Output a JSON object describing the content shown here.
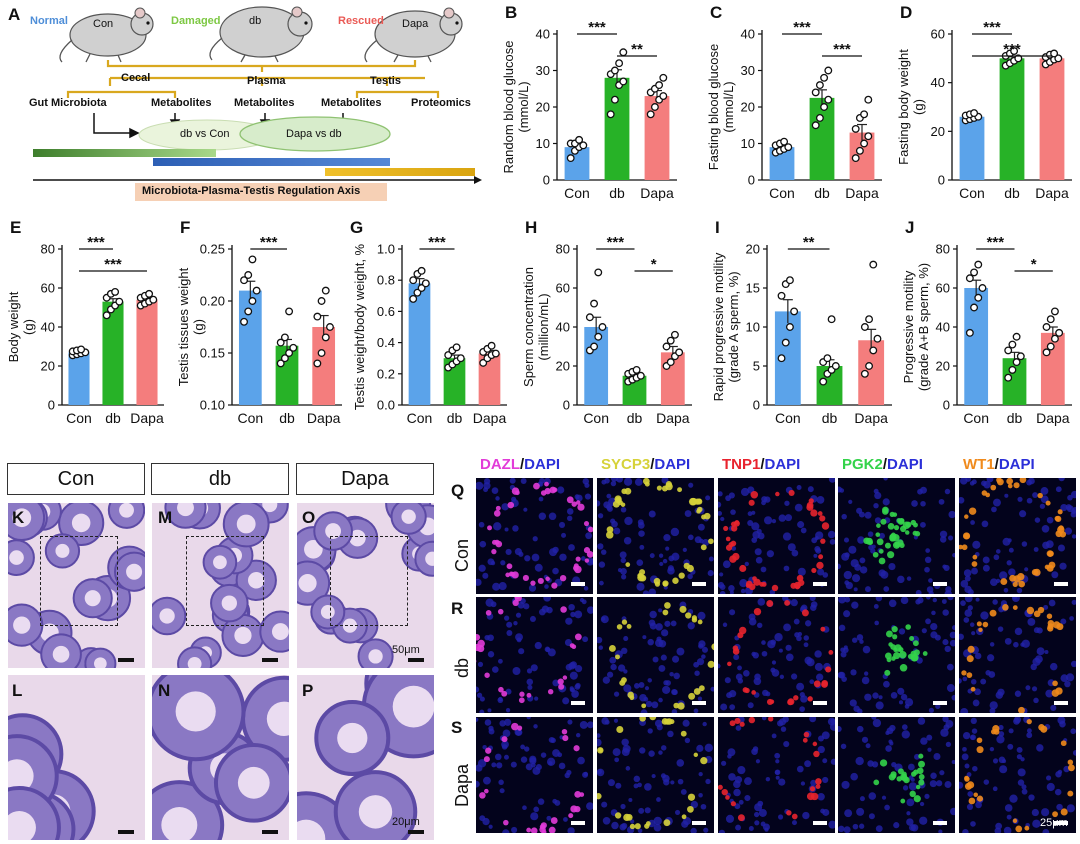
{
  "schematic": {
    "panel_letter": "A",
    "groups": [
      {
        "tag": "Normal",
        "name": "Con",
        "color": "#4e8ed8"
      },
      {
        "tag": "Damaged",
        "name": "db",
        "color": "#7dc843"
      },
      {
        "tag": "Rescued",
        "name": "Dapa",
        "color": "#ea5a55"
      }
    ],
    "tissues": {
      "cecal": "Cecal",
      "plasma": "Plasma",
      "testis": "Testis"
    },
    "items": {
      "gut": "Gut Microbiota",
      "met1": "Metabolites",
      "met2": "Metabolites",
      "met3": "Metabolites",
      "prot": "Proteomics"
    },
    "comparisons": {
      "left": "db vs Con",
      "right": "Dapa vs db"
    },
    "axis_label": "Microbiota-Plasma-Testis Regulation Axis",
    "colors": {
      "green": "#3a7a2a",
      "blue": "#3465b8",
      "yellow": "#e3b81d",
      "ellipse": "#e7f3d9",
      "axis_box": "#f6d0b5"
    }
  },
  "chart_data": [
    {
      "panel": "B",
      "type": "bar",
      "categories": [
        "Con",
        "db",
        "Dapa"
      ],
      "values": [
        9,
        28,
        23
      ],
      "errors": [
        1,
        2.2,
        1.5
      ],
      "points": [
        [
          6,
          8,
          9,
          9.5,
          10,
          10,
          11
        ],
        [
          18,
          22,
          26,
          27,
          29,
          30,
          32,
          35
        ],
        [
          18,
          20,
          22,
          23,
          24,
          25,
          26,
          28
        ]
      ],
      "ylabel": "Random blood glucose (mmol/L)",
      "ylim": [
        0,
        40
      ],
      "yticks": [
        0,
        10,
        20,
        30,
        40
      ],
      "sig": [
        {
          "from": 0,
          "to": 1,
          "label": "***"
        },
        {
          "from": 1,
          "to": 2,
          "label": "**"
        }
      ],
      "colors": [
        "#5ba3ea",
        "#27b227",
        "#f47d7d"
      ]
    },
    {
      "panel": "C",
      "type": "bar",
      "categories": [
        "Con",
        "db",
        "Dapa"
      ],
      "values": [
        9,
        22.5,
        13
      ],
      "errors": [
        0.6,
        2.2,
        2.2
      ],
      "points": [
        [
          7.5,
          8,
          8.5,
          9,
          9.5,
          10,
          10.5
        ],
        [
          15,
          17,
          20,
          22,
          24,
          26,
          28,
          30
        ],
        [
          6,
          8,
          10,
          12,
          14,
          17,
          18,
          22
        ]
      ],
      "ylabel": "Fasting blood glucose (mmol/L)",
      "ylim": [
        0,
        40
      ],
      "yticks": [
        0,
        10,
        20,
        30,
        40
      ],
      "sig": [
        {
          "from": 0,
          "to": 1,
          "label": "***"
        },
        {
          "from": 1,
          "to": 2,
          "label": "***"
        }
      ],
      "colors": [
        "#5ba3ea",
        "#27b227",
        "#f47d7d"
      ]
    },
    {
      "panel": "D",
      "type": "bar",
      "categories": [
        "Con",
        "db",
        "Dapa"
      ],
      "values": [
        26,
        50,
        50
      ],
      "errors": [
        0.6,
        0.9,
        0.9
      ],
      "points": [
        [
          24.5,
          25,
          25.5,
          26,
          26.5,
          27,
          27.5
        ],
        [
          47,
          48,
          49,
          50,
          51,
          52,
          53
        ],
        [
          47.5,
          48.5,
          49.5,
          50,
          50.5,
          51.5,
          52
        ]
      ],
      "ylabel": "Fasting body weight (g)",
      "ylim": [
        0,
        60
      ],
      "yticks": [
        0,
        20,
        40,
        60
      ],
      "sig": [
        {
          "from": 0,
          "to": 1,
          "label": "***"
        },
        {
          "from": 0,
          "to": 2,
          "label": "***"
        }
      ],
      "colors": [
        "#5ba3ea",
        "#27b227",
        "#f47d7d"
      ]
    },
    {
      "panel": "E",
      "type": "bar",
      "categories": [
        "Con",
        "db",
        "Dapa"
      ],
      "values": [
        27,
        53,
        54
      ],
      "errors": [
        0.5,
        1.5,
        0.8
      ],
      "points": [
        [
          25.5,
          26,
          26.5,
          27,
          27.5,
          28,
          28.5
        ],
        [
          46,
          49,
          51,
          53,
          55,
          57,
          58
        ],
        [
          51,
          52,
          53,
          54,
          55,
          56,
          57
        ]
      ],
      "ylabel": "Body weight (g)",
      "ylim": [
        0,
        80
      ],
      "yticks": [
        0,
        20,
        40,
        60,
        80
      ],
      "sig": [
        {
          "from": 0,
          "to": 1,
          "label": "***"
        },
        {
          "from": 0,
          "to": 2,
          "label": "***"
        }
      ],
      "colors": [
        "#5ba3ea",
        "#27b227",
        "#f47d7d"
      ]
    },
    {
      "panel": "F",
      "type": "bar",
      "categories": [
        "Con",
        "db",
        "Dapa"
      ],
      "values": [
        0.21,
        0.157,
        0.175
      ],
      "errors": [
        0.009,
        0.006,
        0.011
      ],
      "points": [
        [
          0.18,
          0.19,
          0.2,
          0.21,
          0.22,
          0.225,
          0.24
        ],
        [
          0.14,
          0.145,
          0.15,
          0.155,
          0.16,
          0.165,
          0.19
        ],
        [
          0.14,
          0.15,
          0.165,
          0.175,
          0.185,
          0.2,
          0.21
        ]
      ],
      "ylabel": "Testis tissues weight (g)",
      "ylim": [
        0.1,
        0.25
      ],
      "yticks": [
        0.1,
        0.15,
        0.2,
        0.25
      ],
      "ytick_labels": [
        "0.10",
        "0.15",
        "0.20",
        "0.25"
      ],
      "sig": [
        {
          "from": 0,
          "to": 1,
          "label": "***"
        }
      ],
      "colors": [
        "#5ba3ea",
        "#27b227",
        "#f47d7d"
      ]
    },
    {
      "panel": "G",
      "type": "bar",
      "categories": [
        "Con",
        "db",
        "Dapa"
      ],
      "values": [
        0.78,
        0.3,
        0.33
      ],
      "errors": [
        0.03,
        0.02,
        0.02
      ],
      "points": [
        [
          0.68,
          0.72,
          0.75,
          0.78,
          0.8,
          0.84,
          0.86
        ],
        [
          0.24,
          0.26,
          0.28,
          0.3,
          0.32,
          0.35,
          0.37
        ],
        [
          0.27,
          0.3,
          0.32,
          0.33,
          0.34,
          0.36,
          0.38
        ]
      ],
      "ylabel": "Testis weight/body weight, %",
      "ylim": [
        0,
        1.0
      ],
      "yticks": [
        0,
        0.2,
        0.4,
        0.6,
        0.8,
        1.0
      ],
      "ytick_labels": [
        "0.0",
        "0.2",
        "0.4",
        "0.6",
        "0.8",
        "1.0"
      ],
      "sig": [
        {
          "from": 0,
          "to": 1,
          "label": "***"
        }
      ],
      "colors": [
        "#5ba3ea",
        "#27b227",
        "#f47d7d"
      ]
    },
    {
      "panel": "H",
      "type": "bar",
      "categories": [
        "Con",
        "db",
        "Dapa"
      ],
      "values": [
        40,
        15,
        27
      ],
      "errors": [
        5,
        1,
        3
      ],
      "points": [
        [
          28,
          30,
          35,
          40,
          45,
          52,
          68
        ],
        [
          12,
          13,
          14,
          15,
          16,
          17,
          18
        ],
        [
          20,
          22,
          25,
          27,
          30,
          33,
          36
        ]
      ],
      "ylabel": "Sperm concentration (million/mL)",
      "ylim": [
        0,
        80
      ],
      "yticks": [
        0,
        20,
        40,
        60,
        80
      ],
      "sig": [
        {
          "from": 0,
          "to": 1,
          "label": "***"
        },
        {
          "from": 1,
          "to": 2,
          "label": "*"
        }
      ],
      "colors": [
        "#5ba3ea",
        "#27b227",
        "#f47d7d"
      ]
    },
    {
      "panel": "I",
      "type": "bar",
      "categories": [
        "Con",
        "db",
        "Dapa"
      ],
      "values": [
        12,
        5,
        8.3
      ],
      "errors": [
        1.5,
        0.8,
        1.4
      ],
      "points": [
        [
          6,
          8,
          10,
          12,
          14,
          15.5,
          16
        ],
        [
          3,
          4,
          4.5,
          5,
          5.5,
          6,
          11
        ],
        [
          4,
          5,
          7,
          8.5,
          10,
          11,
          18
        ]
      ],
      "ylabel": "Rapid progressive motility (grade A sperm, %)",
      "ylim": [
        0,
        20
      ],
      "yticks": [
        0,
        5,
        10,
        15,
        20
      ],
      "sig": [
        {
          "from": 0,
          "to": 1,
          "label": "**"
        }
      ],
      "colors": [
        "#5ba3ea",
        "#27b227",
        "#f47d7d"
      ]
    },
    {
      "panel": "J",
      "type": "bar",
      "categories": [
        "Con",
        "db",
        "Dapa"
      ],
      "values": [
        60,
        24,
        37
      ],
      "errors": [
        4,
        3,
        3
      ],
      "points": [
        [
          37,
          50,
          55,
          60,
          65,
          68,
          72
        ],
        [
          14,
          18,
          22,
          25,
          28,
          31,
          35
        ],
        [
          27,
          30,
          34,
          37,
          40,
          44,
          48
        ]
      ],
      "ylabel": "Progressive motility (grade A+B sperm, %)",
      "ylim": [
        0,
        80
      ],
      "yticks": [
        0,
        20,
        40,
        60,
        80
      ],
      "sig": [
        {
          "from": 0,
          "to": 1,
          "label": "***"
        },
        {
          "from": 1,
          "to": 2,
          "label": "*"
        }
      ],
      "colors": [
        "#5ba3ea",
        "#27b227",
        "#f47d7d"
      ]
    }
  ],
  "histology": {
    "column_titles": [
      "Con",
      "db",
      "Dapa"
    ],
    "panel_letters": [
      "K",
      "M",
      "O",
      "L",
      "N",
      "P"
    ],
    "scale_top": "50μm",
    "scale_bottom": "20μm"
  },
  "immunofluorescence": {
    "headers": [
      {
        "marker": "DAZL",
        "marker_color": "#e23bd8"
      },
      {
        "marker": "SYCP3",
        "marker_color": "#d6d23a"
      },
      {
        "marker": "TNP1",
        "marker_color": "#e8232e"
      },
      {
        "marker": "PGK2",
        "marker_color": "#33d34a"
      },
      {
        "marker": "WT1",
        "marker_color": "#f08a1c"
      }
    ],
    "dapi": "DAPI",
    "separator": "/",
    "dapi_color": "#2b2fd8",
    "row_letters": [
      "Q",
      "R",
      "S"
    ],
    "row_names": [
      "Con",
      "db",
      "Dapa"
    ],
    "scale": "25μm"
  }
}
